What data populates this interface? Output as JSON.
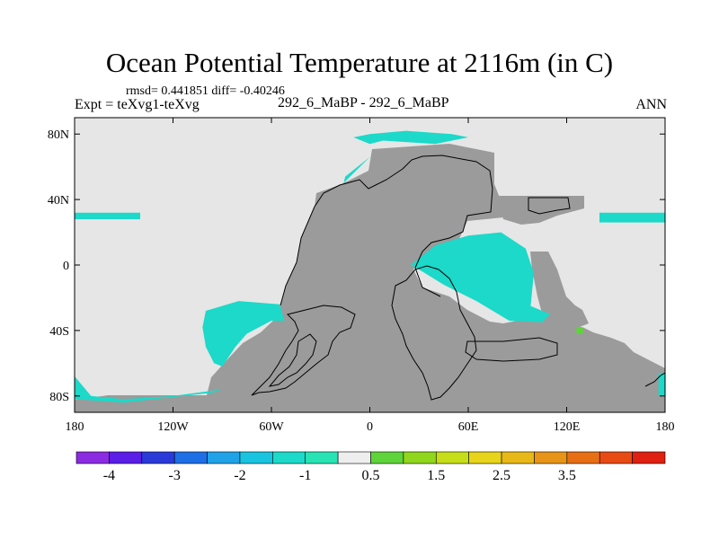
{
  "page": {
    "title": "Ocean Potential Temperature at 2116m (in C)",
    "stats": "rmsd= 0.441851 diff= -0.40246",
    "expt": "Expt = teXvg1-teXvg",
    "case": "292_6_MaBP - 292_6_MaBP",
    "season": "ANN"
  },
  "chart_data": {
    "type": "heatmap",
    "title": "Ocean Potential Temperature at 2116m (in C)",
    "xlabel": "",
    "ylabel": "",
    "xlim": [
      -180,
      180
    ],
    "ylim": [
      -90,
      90
    ],
    "x_ticks": [
      {
        "value": -180,
        "label": "180"
      },
      {
        "value": -120,
        "label": "120W"
      },
      {
        "value": -60,
        "label": "60W"
      },
      {
        "value": 0,
        "label": "0"
      },
      {
        "value": 60,
        "label": "60E"
      },
      {
        "value": 120,
        "label": "120E"
      },
      {
        "value": 180,
        "label": "180"
      }
    ],
    "y_ticks": [
      {
        "value": 80,
        "label": "80N"
      },
      {
        "value": 40,
        "label": "40N"
      },
      {
        "value": 0,
        "label": "0"
      },
      {
        "value": -40,
        "label": "40S"
      },
      {
        "value": -80,
        "label": "80S"
      }
    ],
    "colorbar": {
      "colors": [
        "#8b2be2",
        "#5a1ee6",
        "#2a3ad8",
        "#1e6ee6",
        "#1fa2e8",
        "#19c4e0",
        "#1cd9c9",
        "#28e3b4",
        "#eeeeee",
        "#5fd33a",
        "#90d61c",
        "#c6de1a",
        "#e8d41a",
        "#e8b818",
        "#e89418",
        "#e86e14",
        "#e84a14",
        "#e02010"
      ],
      "labels": [
        {
          "after_index": 0,
          "label": "-4"
        },
        {
          "after_index": 2,
          "label": "-3"
        },
        {
          "after_index": 4,
          "label": "-2"
        },
        {
          "after_index": 6,
          "label": "-1"
        },
        {
          "after_index": 8,
          "label": "0.5"
        },
        {
          "after_index": 10,
          "label": "1.5"
        },
        {
          "after_index": 12,
          "label": "2.5"
        },
        {
          "after_index": 14,
          "label": "3.5"
        }
      ]
    },
    "regions": [
      {
        "name": "north-atlantic-anomaly",
        "value_bin": "-1 to -0.5",
        "color": "#1cd9c9",
        "lonlat": [
          [
            0,
            80
          ],
          [
            22,
            82
          ],
          [
            50,
            80
          ],
          [
            60,
            78
          ],
          [
            40,
            74
          ],
          [
            8,
            76
          ],
          [
            0,
            74
          ],
          [
            -10,
            78
          ]
        ]
      },
      {
        "name": "labrador-anomaly",
        "value_bin": "-1 to -0.5",
        "color": "#1cd9c9",
        "lonlat": [
          [
            -15,
            54
          ],
          [
            -5,
            62
          ],
          [
            0,
            66
          ],
          [
            -8,
            58
          ],
          [
            -16,
            50
          ]
        ]
      },
      {
        "name": "indian-ocean-anomaly",
        "value_bin": "-1 to -0.5",
        "color": "#1cd9c9",
        "lonlat": [
          [
            25,
            0
          ],
          [
            40,
            12
          ],
          [
            60,
            18
          ],
          [
            80,
            20
          ],
          [
            95,
            10
          ],
          [
            100,
            -5
          ],
          [
            98,
            -25
          ],
          [
            110,
            -30
          ],
          [
            105,
            -35
          ],
          [
            85,
            -34
          ],
          [
            65,
            -22
          ],
          [
            45,
            -12
          ],
          [
            32,
            -4
          ]
        ]
      },
      {
        "name": "south-pacific-anomaly",
        "value_bin": "-1 to -0.5",
        "color": "#1cd9c9",
        "lonlat": [
          [
            -100,
            -28
          ],
          [
            -80,
            -22
          ],
          [
            -55,
            -24
          ],
          [
            -52,
            -34
          ],
          [
            -60,
            -34
          ],
          [
            -75,
            -42
          ],
          [
            -82,
            -50
          ],
          [
            -90,
            -62
          ],
          [
            -95,
            -60
          ],
          [
            -100,
            -50
          ],
          [
            -102,
            -38
          ]
        ]
      },
      {
        "name": "southern-ocean-anomaly",
        "value_bin": "-1 to -0.5",
        "color": "#1cd9c9",
        "lonlat": [
          [
            -180,
            -68
          ],
          [
            -170,
            -80
          ],
          [
            -150,
            -82
          ],
          [
            -120,
            -80
          ],
          [
            -90,
            -76
          ],
          [
            -96,
            -78
          ],
          [
            -150,
            -84
          ],
          [
            -180,
            -82
          ]
        ]
      },
      {
        "name": "pacific-band-west-anomaly",
        "value_bin": "-1 to -0.5",
        "color": "#1cd9c9",
        "lonlat": [
          [
            -180,
            32
          ],
          [
            -140,
            32
          ],
          [
            -140,
            28
          ],
          [
            -180,
            28
          ]
        ]
      },
      {
        "name": "pacific-band-east-anomaly",
        "value_bin": "-1 to -0.5",
        "color": "#1cd9c9",
        "lonlat": [
          [
            140,
            32
          ],
          [
            180,
            32
          ],
          [
            180,
            26
          ],
          [
            140,
            26
          ]
        ]
      },
      {
        "name": "small-positive-cell",
        "value_bin": "0.5 to 1",
        "color": "#5fd33a",
        "lonlat": [
          [
            126,
            -38
          ],
          [
            130,
            -38
          ],
          [
            130,
            -42
          ],
          [
            126,
            -42
          ]
        ]
      },
      {
        "name": "east-southern-anomaly",
        "value_bin": "-1 to -0.5",
        "color": "#1cd9c9",
        "lonlat": [
          [
            176,
            -66
          ],
          [
            180,
            -66
          ],
          [
            180,
            -80
          ],
          [
            176,
            -80
          ]
        ]
      }
    ]
  }
}
